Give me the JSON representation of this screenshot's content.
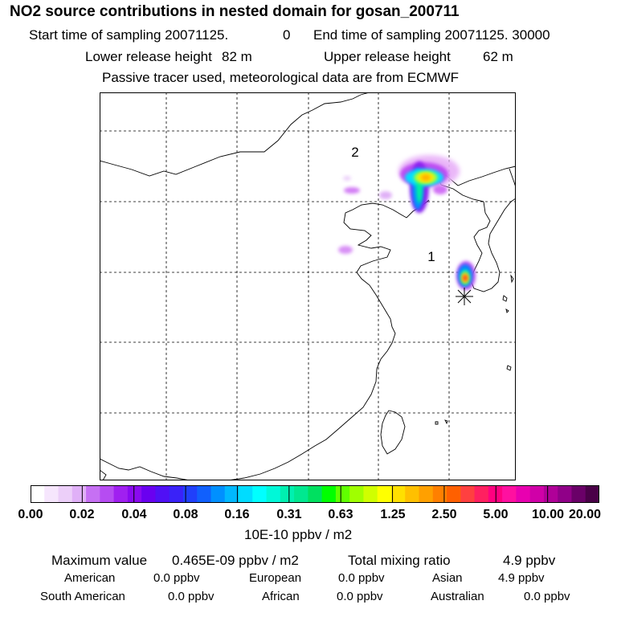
{
  "header": {
    "title": "NO2 source contributions in nested domain for gosan_200711",
    "start_label": "Start time of sampling 20071125.",
    "start_value": "0",
    "end_label": "End time of sampling 20071125. 30000",
    "lower_label": "Lower release height",
    "lower_value": "82 m",
    "upper_label": "Upper release height",
    "upper_value": "62 m",
    "note": "Passive tracer used, meteorological data are from ECMWF"
  },
  "map": {
    "region_labels": [
      "2",
      "1"
    ],
    "receptor_marker": "asterisk-marker"
  },
  "colorbar": {
    "colors": [
      "#ffffff",
      "#f6e6fd",
      "#eccff9",
      "#e0b0f7",
      "#c670f3",
      "#b64cf2",
      "#a020f0",
      "#8a0af0",
      "#6a00f0",
      "#5010f5",
      "#3a22f8",
      "#2040fb",
      "#1060fd",
      "#0090ff",
      "#00b8ff",
      "#00dcff",
      "#00ffff",
      "#00f8d8",
      "#00f0b0",
      "#00e890",
      "#00e060",
      "#00ff00",
      "#60ff00",
      "#a0ff00",
      "#d0ff00",
      "#ffff00",
      "#ffe000",
      "#ffc000",
      "#ffa000",
      "#ff8000",
      "#ff6000",
      "#ff4040",
      "#ff2060",
      "#ff0080",
      "#ff10a0",
      "#e800b0",
      "#d000a8",
      "#b00098",
      "#900088",
      "#6a0068",
      "#4a0048"
    ],
    "groups": 11,
    "tick_labels": [
      "0.00",
      "0.02",
      "0.04",
      "0.08",
      "0.16",
      "0.31",
      "0.63",
      "1.25",
      "2.50",
      "5.00",
      "10.00",
      "20.00"
    ],
    "unit": "10E-10 ppbv / m2"
  },
  "footer": {
    "max_label": "Maximum value",
    "max_value": "0.465E-09 ppbv / m2",
    "total_label": "Total mixing ratio",
    "total_value": "4.9 ppbv",
    "regions": [
      {
        "name": "American",
        "value": "0.0 ppbv"
      },
      {
        "name": "European",
        "value": "0.0 ppbv"
      },
      {
        "name": "Asian",
        "value": "4.9 ppbv"
      },
      {
        "name": "South American",
        "value": "0.0 ppbv"
      },
      {
        "name": "African",
        "value": "0.0 ppbv"
      },
      {
        "name": "Australian",
        "value": "0.0 ppbv"
      }
    ]
  }
}
